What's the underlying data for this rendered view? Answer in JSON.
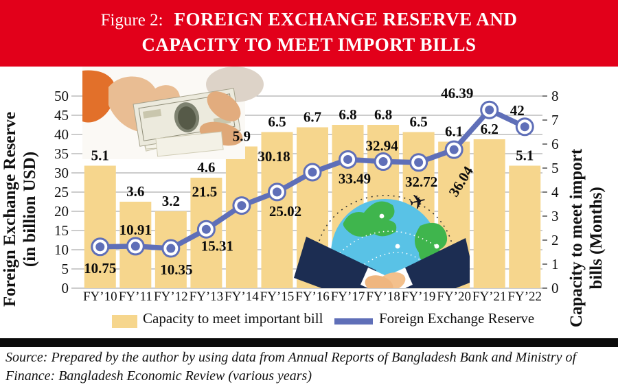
{
  "figure": {
    "title_prefix": "Figure 2:",
    "title_line1": "FOREIGN EXCHANGE RESERVE AND",
    "title_line2": "CAPACITY TO MEET IMPORT BILLS"
  },
  "chart_data": {
    "type": "bar+line combo",
    "categories": [
      "FY’10",
      "FY’11",
      "FY’12",
      "FY’13",
      "FY’14",
      "FY’15",
      "FY’16",
      "FY’17",
      "FY’18",
      "FY’19",
      "FY’20",
      "FY’21",
      "FY’22"
    ],
    "series": [
      {
        "name": "Capacity to meet important bill",
        "type": "bar",
        "axis": "right",
        "values": [
          5.1,
          3.6,
          3.2,
          4.6,
          5.9,
          6.5,
          6.7,
          6.8,
          6.8,
          6.5,
          6.1,
          6.2,
          5.1
        ],
        "color": "#F6D68D"
      },
      {
        "name": "Foreign Exchange Reserve",
        "type": "line",
        "axis": "left",
        "values": [
          10.75,
          10.91,
          10.35,
          15.31,
          21.5,
          25.02,
          30.18,
          33.49,
          32.94,
          32.72,
          36.04,
          46.39,
          42
        ],
        "color": "#5F6FB8"
      }
    ],
    "left_axis": {
      "title_line1": "Foreign Exchange Reserve",
      "title_line2": "(in billion USD)",
      "min": 0,
      "max": 50,
      "step": 5
    },
    "right_axis": {
      "title_line1": "Capacity to meet import",
      "title_line2": "bills (Months)",
      "min": 0,
      "max": 8,
      "step": 1
    },
    "grid": true,
    "legend_position": "bottom",
    "data_labels": true
  },
  "source": {
    "line1": "Source: Prepared by the author by using data from Annual Reports of Bangladesh Bank and Ministry of",
    "line2": "Finance: Bangladesh Economic Review (various years)"
  },
  "decorations": {
    "money_photo": "hands counting US 100-dollar bills",
    "globe_handshake": "handshake in front of globe with airplane and dashed flight routes"
  },
  "colors": {
    "banner_red": "#E2001A",
    "bar_fill": "#F6D68D",
    "line_blue": "#5F6FB8",
    "grid_gray": "#9a9a9a",
    "text_black": "#111111"
  }
}
